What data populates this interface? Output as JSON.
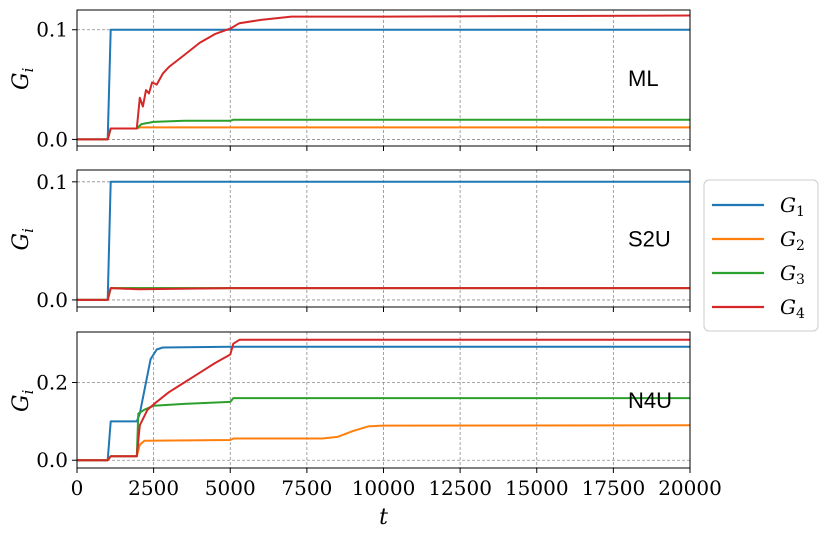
{
  "chart_data": [
    {
      "type": "line",
      "panel_label": "ML",
      "ylabel": "G_i",
      "xlim": [
        0,
        20000
      ],
      "ylim": [
        -0.006,
        0.118
      ],
      "yticks": [
        {
          "value": 0.0,
          "label": "0.0"
        },
        {
          "value": 0.1,
          "label": "0.1"
        }
      ],
      "grid": true,
      "series": [
        {
          "key": "G1",
          "color": "#1f77b4",
          "points": [
            [
              0,
              0
            ],
            [
              1000,
              0
            ],
            [
              1050,
              0.05
            ],
            [
              1100,
              0.1
            ],
            [
              20000,
              0.1
            ]
          ]
        },
        {
          "key": "G2",
          "color": "#ff7f0e",
          "points": [
            [
              0,
              0
            ],
            [
              1000,
              0
            ],
            [
              1100,
              0.01
            ],
            [
              1950,
              0.01
            ],
            [
              2050,
              0.011
            ],
            [
              20000,
              0.011
            ]
          ]
        },
        {
          "key": "G3",
          "color": "#2ca02c",
          "points": [
            [
              0,
              0
            ],
            [
              1000,
              0
            ],
            [
              1100,
              0.01
            ],
            [
              1950,
              0.01
            ],
            [
              2100,
              0.014
            ],
            [
              2500,
              0.016
            ],
            [
              3500,
              0.017
            ],
            [
              5000,
              0.017
            ],
            [
              5100,
              0.018
            ],
            [
              20000,
              0.018
            ]
          ]
        },
        {
          "key": "G4",
          "color": "#d62728",
          "points": [
            [
              0,
              0
            ],
            [
              1000,
              0
            ],
            [
              1100,
              0.01
            ],
            [
              1950,
              0.01
            ],
            [
              2050,
              0.038
            ],
            [
              2150,
              0.03
            ],
            [
              2250,
              0.045
            ],
            [
              2350,
              0.042
            ],
            [
              2450,
              0.052
            ],
            [
              2600,
              0.05
            ],
            [
              2800,
              0.06
            ],
            [
              3000,
              0.066
            ],
            [
              3500,
              0.077
            ],
            [
              4000,
              0.088
            ],
            [
              4500,
              0.096
            ],
            [
              5000,
              0.101
            ],
            [
              5300,
              0.106
            ],
            [
              6000,
              0.109
            ],
            [
              7000,
              0.112
            ],
            [
              10000,
              0.112
            ],
            [
              20000,
              0.113
            ]
          ]
        }
      ]
    },
    {
      "type": "line",
      "panel_label": "S2U",
      "ylabel": "G_i",
      "xlim": [
        0,
        20000
      ],
      "ylim": [
        -0.006,
        0.11
      ],
      "yticks": [
        {
          "value": 0.0,
          "label": "0.0"
        },
        {
          "value": 0.1,
          "label": "0.1"
        }
      ],
      "grid": true,
      "series": [
        {
          "key": "G1",
          "color": "#1f77b4",
          "points": [
            [
              0,
              0
            ],
            [
              1000,
              0
            ],
            [
              1050,
              0.05
            ],
            [
              1100,
              0.1
            ],
            [
              20000,
              0.1
            ]
          ]
        },
        {
          "key": "G2",
          "color": "#ff7f0e",
          "points": [
            [
              0,
              0
            ],
            [
              1000,
              0
            ],
            [
              1100,
              0.01
            ],
            [
              20000,
              0.01
            ]
          ]
        },
        {
          "key": "G3",
          "color": "#2ca02c",
          "points": [
            [
              0,
              0
            ],
            [
              1000,
              0
            ],
            [
              1100,
              0.01
            ],
            [
              20000,
              0.01
            ]
          ]
        },
        {
          "key": "G4",
          "color": "#d62728",
          "points": [
            [
              0,
              0
            ],
            [
              1000,
              0
            ],
            [
              1100,
              0.01
            ],
            [
              2000,
              0.009
            ],
            [
              5000,
              0.01
            ],
            [
              20000,
              0.01
            ]
          ]
        }
      ]
    },
    {
      "type": "line",
      "panel_label": "N4U",
      "ylabel": "G_i",
      "xlim": [
        0,
        20000
      ],
      "ylim": [
        -0.02,
        0.33
      ],
      "yticks": [
        {
          "value": 0.0,
          "label": "0.0"
        },
        {
          "value": 0.2,
          "label": "0.2"
        }
      ],
      "xticks": [
        {
          "value": 0,
          "label": "0"
        },
        {
          "value": 2500,
          "label": "2500"
        },
        {
          "value": 5000,
          "label": "5000"
        },
        {
          "value": 7500,
          "label": "7500"
        },
        {
          "value": 10000,
          "label": "10000"
        },
        {
          "value": 12500,
          "label": "12500"
        },
        {
          "value": 15000,
          "label": "15000"
        },
        {
          "value": 17500,
          "label": "17500"
        },
        {
          "value": 20000,
          "label": "20000"
        }
      ],
      "xlabel": "t",
      "grid": true,
      "series": [
        {
          "key": "G1",
          "color": "#1f77b4",
          "points": [
            [
              0,
              0
            ],
            [
              1000,
              0
            ],
            [
              1100,
              0.1
            ],
            [
              1950,
              0.1
            ],
            [
              2050,
              0.12
            ],
            [
              2200,
              0.18
            ],
            [
              2400,
              0.26
            ],
            [
              2600,
              0.285
            ],
            [
              2800,
              0.29
            ],
            [
              5000,
              0.292
            ],
            [
              20000,
              0.292
            ]
          ]
        },
        {
          "key": "G2",
          "color": "#ff7f0e",
          "points": [
            [
              0,
              0
            ],
            [
              1000,
              0
            ],
            [
              1100,
              0.01
            ],
            [
              1950,
              0.01
            ],
            [
              2050,
              0.04
            ],
            [
              2200,
              0.05
            ],
            [
              5000,
              0.052
            ],
            [
              5100,
              0.056
            ],
            [
              8000,
              0.056
            ],
            [
              8500,
              0.06
            ],
            [
              9000,
              0.075
            ],
            [
              9500,
              0.087
            ],
            [
              10000,
              0.089
            ],
            [
              20000,
              0.09
            ]
          ]
        },
        {
          "key": "G3",
          "color": "#2ca02c",
          "points": [
            [
              0,
              0
            ],
            [
              1000,
              0
            ],
            [
              1100,
              0.01
            ],
            [
              1950,
              0.01
            ],
            [
              2000,
              0.12
            ],
            [
              2200,
              0.13
            ],
            [
              2500,
              0.14
            ],
            [
              3500,
              0.145
            ],
            [
              5000,
              0.15
            ],
            [
              5100,
              0.16
            ],
            [
              20000,
              0.16
            ]
          ]
        },
        {
          "key": "G4",
          "color": "#d62728",
          "points": [
            [
              0,
              0
            ],
            [
              1000,
              0
            ],
            [
              1100,
              0.01
            ],
            [
              1950,
              0.01
            ],
            [
              2050,
              0.09
            ],
            [
              2300,
              0.13
            ],
            [
              2600,
              0.15
            ],
            [
              3000,
              0.175
            ],
            [
              3500,
              0.2
            ],
            [
              4000,
              0.225
            ],
            [
              4500,
              0.25
            ],
            [
              5000,
              0.272
            ],
            [
              5100,
              0.3
            ],
            [
              5300,
              0.31
            ],
            [
              20000,
              0.31
            ]
          ]
        }
      ]
    }
  ],
  "legend": {
    "placement": "right",
    "entries": [
      {
        "key": "G1",
        "label": "G",
        "sub": "1",
        "color": "#1f77b4"
      },
      {
        "key": "G2",
        "label": "G",
        "sub": "2",
        "color": "#ff7f0e"
      },
      {
        "key": "G3",
        "label": "G",
        "sub": "3",
        "color": "#2ca02c"
      },
      {
        "key": "G4",
        "label": "G",
        "sub": "4",
        "color": "#d62728"
      }
    ]
  },
  "ylabel_main": "G",
  "ylabel_sub": "i"
}
